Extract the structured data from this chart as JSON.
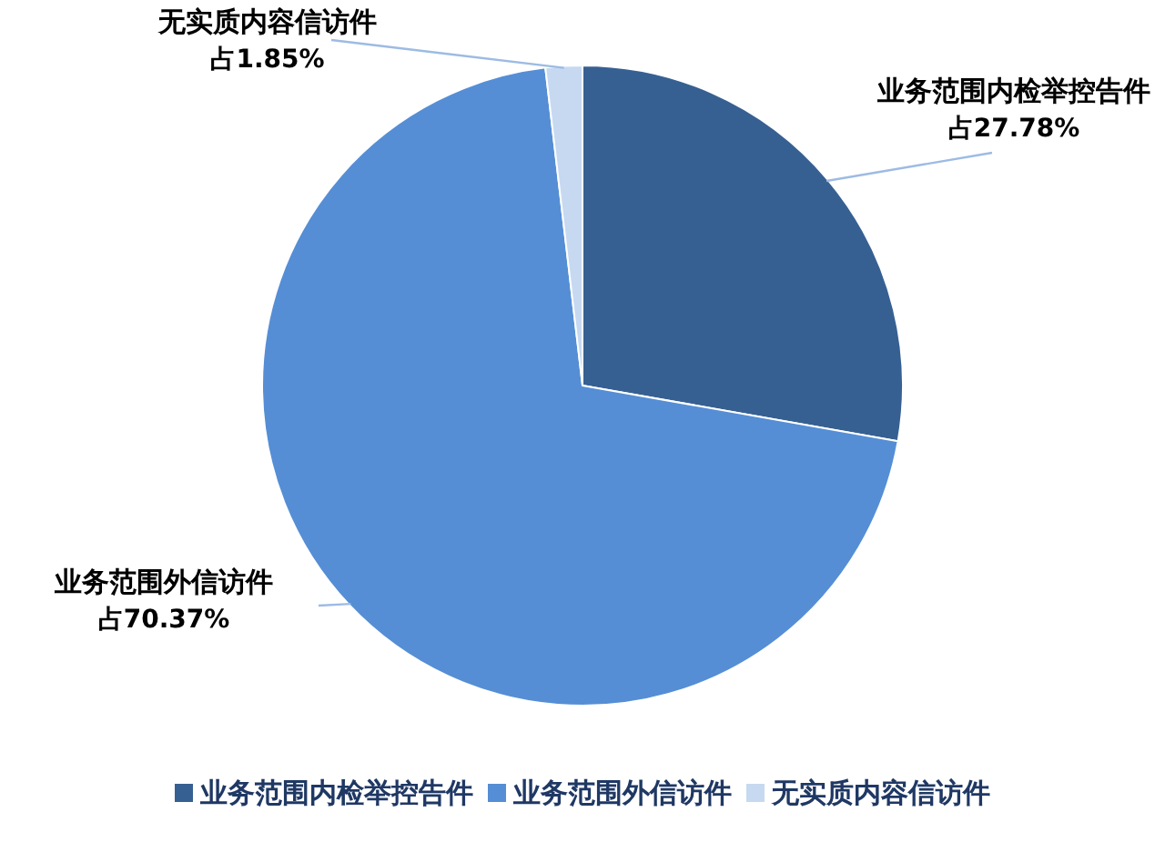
{
  "chart_data": {
    "type": "pie",
    "categories": [
      "业务范围内检举控告件",
      "业务范围外信访件",
      "无实质内容信访件"
    ],
    "values": [
      27.78,
      70.37,
      1.85
    ],
    "value_labels": [
      "占27.78%",
      "占70.37%",
      "占1.85%"
    ],
    "colors": [
      "#376092",
      "#558ed5",
      "#c6d9f1"
    ],
    "legend": "bottom"
  }
}
